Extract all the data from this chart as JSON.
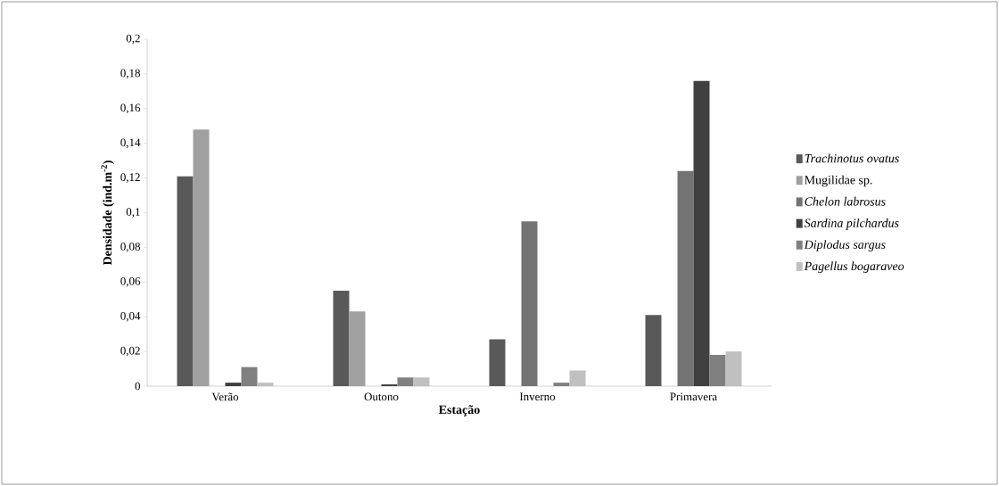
{
  "chart_data": {
    "type": "bar",
    "xlabel": "Estação",
    "ylabel": "Densidade (ind.m$^{-2}$)",
    "categories": [
      "Verão",
      "Outono",
      "Inverno",
      "Primavera"
    ],
    "series": [
      {
        "name": "*Trachinotus ovatus*",
        "color": "#595959",
        "values": [
          0.121,
          0.055,
          0.027,
          0.041
        ]
      },
      {
        "name": "Mugilidae sp.",
        "color": "#a0a0a0",
        "values": [
          0.148,
          0.043,
          0,
          0
        ]
      },
      {
        "name": "*Chelon labrosus*",
        "color": "#737373",
        "values": [
          0,
          0,
          0.095,
          0.124
        ]
      },
      {
        "name": "*Sardina pilchardus*",
        "color": "#404040",
        "values": [
          0.002,
          0.001,
          0,
          0.176
        ]
      },
      {
        "name": "*Diplodus sargus*",
        "color": "#808080",
        "values": [
          0.011,
          0.005,
          0.002,
          0.018
        ]
      },
      {
        "name": "*Pagellus bogaraveo*",
        "color": "#c0c0c0",
        "values": [
          0.002,
          0.005,
          0.009,
          0.02
        ]
      }
    ],
    "ylim": [
      0,
      0.2
    ],
    "yticks": [
      0,
      {
        "value": 0.02,
        "label": "0,02"
      },
      {
        "value": 0.04,
        "label": "0,04"
      },
      {
        "value": 0.06,
        "label": "0,06"
      },
      {
        "value": 0.08,
        "label": "0,08"
      },
      {
        "value": 0.1,
        "label": "0,1"
      },
      {
        "value": 0.12,
        "label": "0,12"
      },
      {
        "value": 0.14,
        "label": "0,14"
      },
      {
        "value": 0.16,
        "label": "0,16"
      },
      {
        "value": 0.18,
        "label": "0,18"
      },
      {
        "value": 0.2,
        "label": "0,2"
      }
    ],
    "grid": false,
    "legend": "right"
  }
}
